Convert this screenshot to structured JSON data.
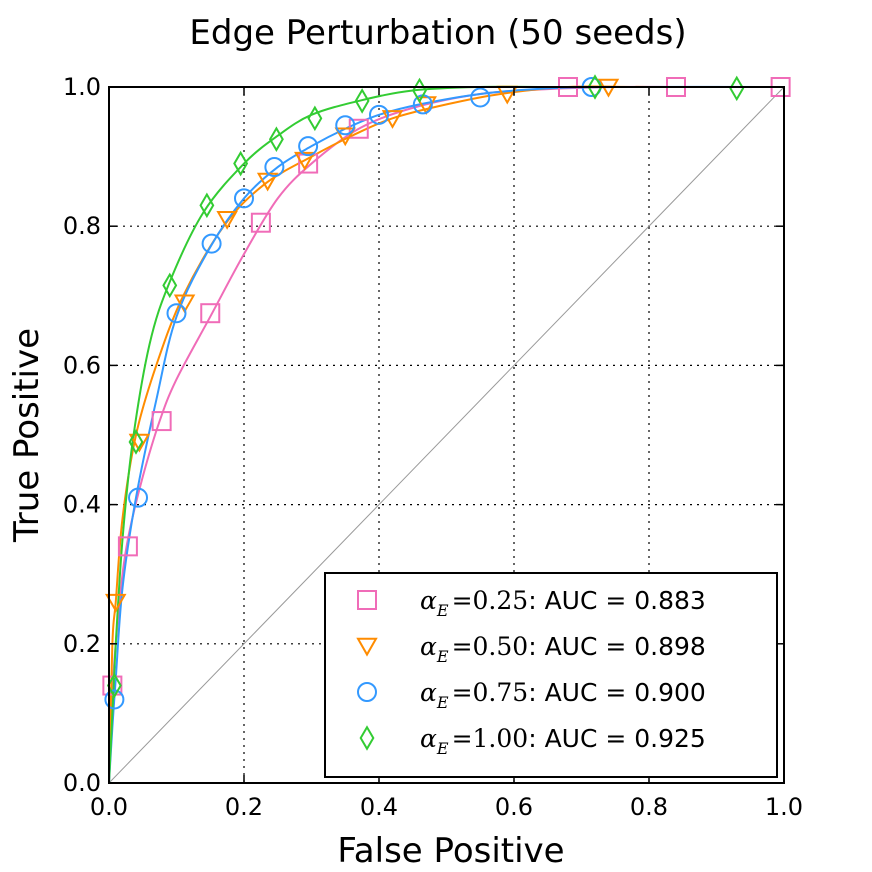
{
  "chart_data": {
    "type": "line",
    "title": "Edge Perturbation (50 seeds)",
    "xlabel": "False Positive",
    "ylabel": "True Positive",
    "xlim": [
      0.0,
      1.0
    ],
    "ylim": [
      0.0,
      1.0
    ],
    "x_ticks": [
      "0.0",
      "0.2",
      "0.4",
      "0.6",
      "0.8",
      "1.0"
    ],
    "y_ticks": [
      "0.0",
      "0.2",
      "0.4",
      "0.6",
      "0.8",
      "1.0"
    ],
    "grid": true,
    "legend_position": "lower-right",
    "diagonal": {
      "x": [
        0,
        1
      ],
      "y": [
        0,
        1
      ],
      "color": "#999999"
    },
    "series": [
      {
        "symbol": "α",
        "subscript": "E",
        "alpha_value": "=0.25",
        "auc_text": ": AUC = 0.883",
        "marker": "square",
        "color": "#f06cb8",
        "curve_x": [
          0,
          0.005,
          0.01,
          0.02,
          0.03,
          0.05,
          0.075,
          0.1,
          0.15,
          0.2,
          0.25,
          0.3,
          0.37,
          0.45,
          0.55,
          0.65,
          0.75,
          0.85,
          1.0
        ],
        "curve_y": [
          0,
          0.13,
          0.2,
          0.3,
          0.36,
          0.44,
          0.52,
          0.58,
          0.67,
          0.76,
          0.84,
          0.89,
          0.94,
          0.97,
          0.99,
          0.997,
          1.0,
          1.0,
          1.0
        ],
        "marker_x": [
          0.005,
          0.028,
          0.078,
          0.15,
          0.225,
          0.295,
          0.37,
          0.68,
          0.84,
          0.995
        ],
        "marker_y": [
          0.14,
          0.34,
          0.52,
          0.675,
          0.805,
          0.89,
          0.94,
          1.0,
          1.0,
          1.0
        ]
      },
      {
        "symbol": "α",
        "subscript": "E",
        "alpha_value": "=0.50",
        "auc_text": ": AUC = 0.898",
        "marker": "triangle-down",
        "color": "#ff8c00",
        "curve_x": [
          0,
          0.005,
          0.01,
          0.02,
          0.04,
          0.07,
          0.11,
          0.17,
          0.23,
          0.3,
          0.36,
          0.42,
          0.5,
          0.58,
          0.68,
          0.8,
          1.0
        ],
        "curve_y": [
          0,
          0.2,
          0.26,
          0.38,
          0.5,
          0.6,
          0.7,
          0.8,
          0.86,
          0.9,
          0.93,
          0.955,
          0.975,
          0.99,
          1.0,
          1.0,
          1.0
        ],
        "marker_x": [
          0.01,
          0.045,
          0.112,
          0.175,
          0.235,
          0.29,
          0.35,
          0.42,
          0.47,
          0.59,
          0.74
        ],
        "marker_y": [
          0.26,
          0.49,
          0.69,
          0.81,
          0.865,
          0.895,
          0.93,
          0.955,
          0.975,
          0.99,
          1.0
        ]
      },
      {
        "symbol": "α",
        "subscript": "E",
        "alpha_value": "=0.75",
        "auc_text": ": AUC = 0.900",
        "marker": "circle",
        "color": "#3399ff",
        "curve_x": [
          0,
          0.005,
          0.01,
          0.02,
          0.04,
          0.07,
          0.1,
          0.15,
          0.2,
          0.25,
          0.3,
          0.35,
          0.4,
          0.46,
          0.55,
          0.65,
          0.75,
          1.0
        ],
        "curve_y": [
          0,
          0.08,
          0.15,
          0.28,
          0.41,
          0.55,
          0.67,
          0.77,
          0.84,
          0.885,
          0.915,
          0.94,
          0.96,
          0.975,
          0.99,
          0.998,
          1.0,
          1.0
        ],
        "marker_x": [
          0.008,
          0.043,
          0.1,
          0.152,
          0.2,
          0.245,
          0.295,
          0.35,
          0.4,
          0.465,
          0.55,
          0.715
        ],
        "marker_y": [
          0.12,
          0.41,
          0.675,
          0.775,
          0.84,
          0.885,
          0.915,
          0.945,
          0.96,
          0.975,
          0.985,
          1.0
        ]
      },
      {
        "symbol": "α",
        "subscript": "E",
        "alpha_value": "=1.00",
        "auc_text": ": AUC = 0.925",
        "marker": "diamond",
        "color": "#33cc33",
        "curve_x": [
          0,
          0.005,
          0.01,
          0.02,
          0.035,
          0.06,
          0.09,
          0.14,
          0.2,
          0.25,
          0.3,
          0.37,
          0.45,
          0.55,
          0.65,
          0.75,
          1.0
        ],
        "curve_y": [
          0,
          0.1,
          0.2,
          0.35,
          0.49,
          0.63,
          0.72,
          0.82,
          0.89,
          0.93,
          0.96,
          0.98,
          0.995,
          1.0,
          1.0,
          1.0,
          1.0
        ],
        "marker_x": [
          0.008,
          0.04,
          0.09,
          0.145,
          0.195,
          0.248,
          0.305,
          0.375,
          0.46,
          0.72,
          0.93
        ],
        "marker_y": [
          0.14,
          0.49,
          0.715,
          0.83,
          0.89,
          0.925,
          0.955,
          0.98,
          0.995,
          1.0,
          0.998
        ]
      }
    ]
  }
}
